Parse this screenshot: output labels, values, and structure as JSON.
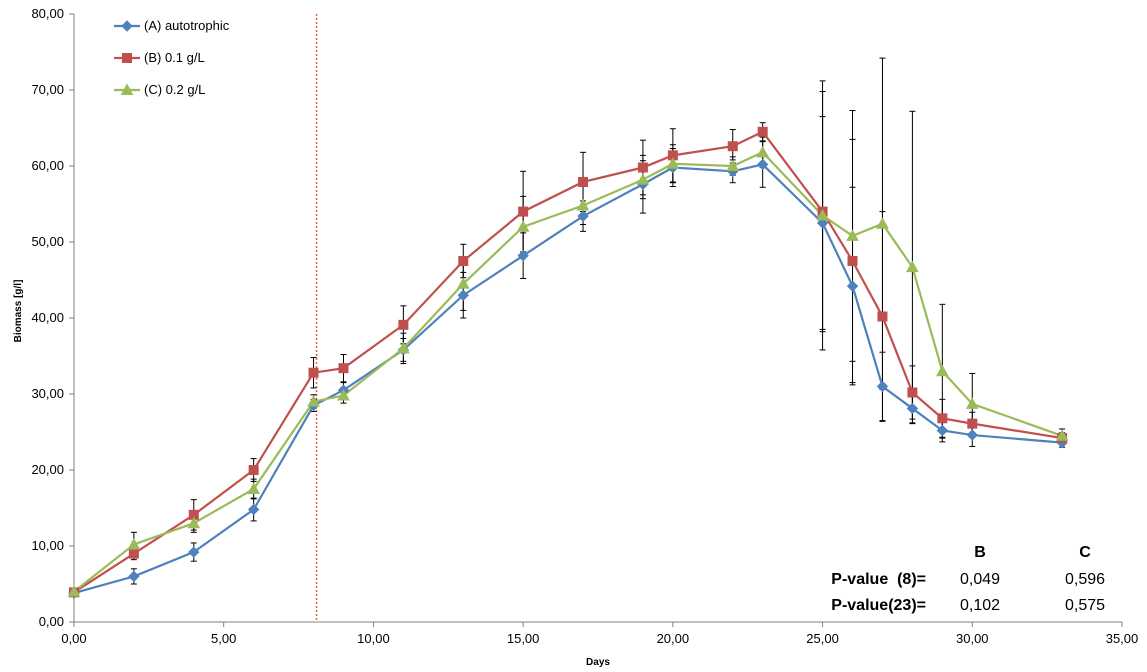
{
  "chart_data": {
    "type": "line",
    "title": "",
    "xlabel": "Days",
    "ylabel": "Biomass [g/l]",
    "xlim": [
      0,
      35
    ],
    "ylim": [
      0,
      80
    ],
    "x_ticks": [
      "0,00",
      "5,00",
      "10,00",
      "15,00",
      "20,00",
      "25,00",
      "30,00",
      "35,00"
    ],
    "y_ticks": [
      "0,00",
      "10,00",
      "20,00",
      "30,00",
      "40,00",
      "50,00",
      "60,00",
      "70,00",
      "80,00"
    ],
    "x_tick_values": [
      0,
      5,
      10,
      15,
      20,
      25,
      30,
      35
    ],
    "y_tick_values": [
      0,
      10,
      20,
      30,
      40,
      50,
      60,
      70,
      80
    ],
    "grid": false,
    "legend_position": "top-left",
    "reference_line": {
      "x": 8.1,
      "color": "#e8604c",
      "style": "dotted"
    },
    "series": [
      {
        "name": "(A) autotrophic",
        "color": "#4f81bd",
        "marker": "diamond",
        "x": [
          0,
          2,
          4,
          6,
          8,
          9,
          11,
          13,
          15,
          17,
          19,
          20,
          22,
          23,
          25,
          26,
          27,
          28,
          29,
          30,
          33
        ],
        "y": [
          3.8,
          6.0,
          9.2,
          14.8,
          28.5,
          30.5,
          35.8,
          43.0,
          48.2,
          53.4,
          57.6,
          59.8,
          59.3,
          60.2,
          52.5,
          44.2,
          31.0,
          28.1,
          25.2,
          24.6,
          23.6
        ],
        "err": [
          0.3,
          1.0,
          1.2,
          1.5,
          0.8,
          1.0,
          1.5,
          3.0,
          3.0,
          2.0,
          3.8,
          2.5,
          1.5,
          3.0,
          14.0,
          13.0,
          4.5,
          2.0,
          1.5,
          1.5,
          0.6
        ]
      },
      {
        "name": "(B) 0.1 g/L",
        "color": "#c0504d",
        "marker": "square",
        "x": [
          0,
          2,
          4,
          6,
          8,
          9,
          11,
          13,
          15,
          17,
          19,
          20,
          22,
          23,
          25,
          26,
          27,
          28,
          29,
          30,
          33
        ],
        "y": [
          3.9,
          9.0,
          14.1,
          20.0,
          32.8,
          33.4,
          39.1,
          47.5,
          54.0,
          57.9,
          59.8,
          61.4,
          62.6,
          64.5,
          54.0,
          47.5,
          40.2,
          30.2,
          26.8,
          26.1,
          24.2
        ],
        "err": [
          0.3,
          0.8,
          2.0,
          1.5,
          2.0,
          1.8,
          2.5,
          2.2,
          5.3,
          3.9,
          3.6,
          3.5,
          2.2,
          1.2,
          15.8,
          16.0,
          13.8,
          3.5,
          2.5,
          1.5,
          0.7
        ]
      },
      {
        "name": "(C) 0.2 g/L",
        "color": "#9bbb59",
        "marker": "triangle",
        "x": [
          0,
          2,
          4,
          6,
          8,
          9,
          11,
          13,
          15,
          17,
          19,
          20,
          22,
          23,
          25,
          26,
          27,
          28,
          29,
          30,
          33
        ],
        "y": [
          4.0,
          10.2,
          13.0,
          17.5,
          29.0,
          29.8,
          36.0,
          44.5,
          52.0,
          54.8,
          58.2,
          60.3,
          60.0,
          61.8,
          53.5,
          50.8,
          52.4,
          46.7,
          33.0,
          28.7,
          24.5
        ],
        "err": [
          0.3,
          1.6,
          1.2,
          1.3,
          0.9,
          1.0,
          2.0,
          3.5,
          4.0,
          2.5,
          2.5,
          2.5,
          1.2,
          2.0,
          17.7,
          16.5,
          21.8,
          20.5,
          8.8,
          4.0,
          0.9
        ]
      }
    ],
    "annotation_table": {
      "headers": [
        "",
        "B",
        "C"
      ],
      "rows": [
        {
          "label": "P-value  (8)=",
          "B": "0,049",
          "C": "0,596"
        },
        {
          "label": "P-value(23)=",
          "B": "0,102",
          "C": "0,575"
        }
      ]
    }
  }
}
